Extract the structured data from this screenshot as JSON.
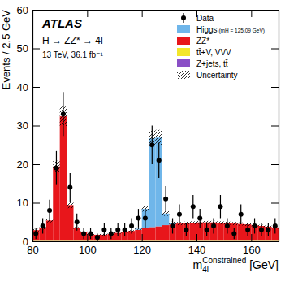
{
  "chart_data": {
    "type": "histogram",
    "annotations": [
      "ATLAS",
      "H → ZZ* → 4l",
      "13 TeV, 36.1 fb⁻¹"
    ],
    "x_label": {
      "base": "m",
      "sub": "4l",
      "sup": "Constrained",
      "unit": "[GeV]"
    },
    "y_label": "Events / 2.5 GeV",
    "bins": [
      80,
      82.5,
      85,
      87.5,
      90,
      92.5,
      95,
      97.5,
      100,
      102.5,
      105,
      107.5,
      110,
      112.5,
      115,
      117.5,
      120,
      122.5,
      125,
      127.5,
      130,
      132.5,
      135,
      137.5,
      140,
      142.5,
      145,
      147.5,
      150,
      152.5,
      155,
      157.5,
      160,
      162.5,
      165,
      167.5,
      170
    ],
    "series": [
      {
        "name": "Data",
        "type": "scatter",
        "marker": "circle",
        "color": "#000000",
        "values": [
          2,
          4,
          8,
          19,
          33,
          14,
          5,
          2,
          2,
          1,
          3,
          2,
          3,
          3,
          4,
          6,
          6,
          25,
          21,
          11,
          4,
          7,
          3,
          9,
          6,
          3,
          4,
          9,
          4,
          2,
          7,
          3,
          4,
          3,
          3,
          4
        ],
        "errors": [
          1.4,
          2.0,
          2.8,
          4.4,
          5.7,
          3.7,
          2.2,
          1.4,
          1.4,
          1.0,
          1.7,
          1.4,
          1.7,
          1.7,
          2.0,
          2.4,
          2.4,
          5.0,
          4.6,
          3.3,
          2.0,
          2.6,
          1.7,
          3.0,
          2.4,
          1.7,
          2.0,
          3.0,
          2.0,
          1.4,
          2.6,
          1.7,
          2.0,
          1.7,
          1.7,
          2.0
        ]
      },
      {
        "name": "Higgs (mH = 125.09 GeV)",
        "color": "#6fb6ea",
        "values": [
          0,
          0,
          0,
          0,
          0,
          0,
          0,
          0,
          0,
          0,
          0,
          0,
          0,
          0,
          0,
          0.3,
          5,
          23,
          23,
          3,
          0.3,
          0,
          0,
          0,
          0,
          0,
          0,
          0,
          0,
          0,
          0,
          0,
          0,
          0,
          0,
          0
        ]
      },
      {
        "name": "ZZ*",
        "color": "#e8161b",
        "values": [
          2.5,
          3,
          5,
          19,
          32,
          9,
          3,
          2,
          1.5,
          1.3,
          1.3,
          1.5,
          1.8,
          2,
          2.3,
          2.6,
          3.0,
          3.3,
          3.5,
          3.8,
          4.0,
          4.2,
          4.3,
          4.4,
          4.5,
          4.5,
          4.5,
          4.4,
          4.3,
          4.2,
          4.1,
          4.0,
          3.8,
          3.6,
          3.4,
          3.2
        ]
      },
      {
        "name": "tt̄+V, VVV",
        "color": "#f3e62a",
        "values": [
          0.1,
          0.1,
          0.1,
          0.1,
          0.1,
          0.1,
          0.1,
          0.1,
          0.1,
          0.1,
          0.1,
          0.1,
          0.1,
          0.1,
          0.1,
          0.1,
          0.1,
          0.1,
          0.1,
          0.1,
          0.1,
          0.1,
          0.1,
          0.1,
          0.1,
          0.1,
          0.1,
          0.1,
          0.1,
          0.1,
          0.1,
          0.1,
          0.1,
          0.1,
          0.1,
          0.1
        ]
      },
      {
        "name": "Z+jets, tt̄",
        "color": "#8a4fc6",
        "values": [
          0.3,
          0.3,
          0.3,
          0.3,
          0.3,
          0.3,
          0.3,
          0.3,
          0.3,
          0.3,
          0.3,
          0.3,
          0.3,
          0.3,
          0.3,
          0.3,
          0.3,
          0.3,
          0.3,
          0.3,
          0.3,
          0.3,
          0.3,
          0.3,
          0.3,
          0.3,
          0.3,
          0.3,
          0.3,
          0.3,
          0.3,
          0.3,
          0.3,
          0.3,
          0.3,
          0.3
        ]
      },
      {
        "name": "Uncertainty",
        "type": "band",
        "color": "#000000",
        "values": [
          0.3,
          0.3,
          0.5,
          1.5,
          2.5,
          0.8,
          0.3,
          0.2,
          0.2,
          0.2,
          0.2,
          0.2,
          0.2,
          0.2,
          0.2,
          0.3,
          0.7,
          2.0,
          2.0,
          0.6,
          0.4,
          0.4,
          0.4,
          0.4,
          0.4,
          0.4,
          0.4,
          0.4,
          0.4,
          0.4,
          0.4,
          0.4,
          0.3,
          0.3,
          0.3,
          0.3
        ]
      }
    ],
    "stacked": true,
    "legend": "upper right",
    "xlim": [
      80,
      170
    ],
    "ylim": [
      0,
      60
    ],
    "xticks": [
      80,
      100,
      120,
      140,
      160
    ],
    "yticks": [
      0,
      10,
      20,
      30,
      40,
      50,
      60
    ]
  }
}
